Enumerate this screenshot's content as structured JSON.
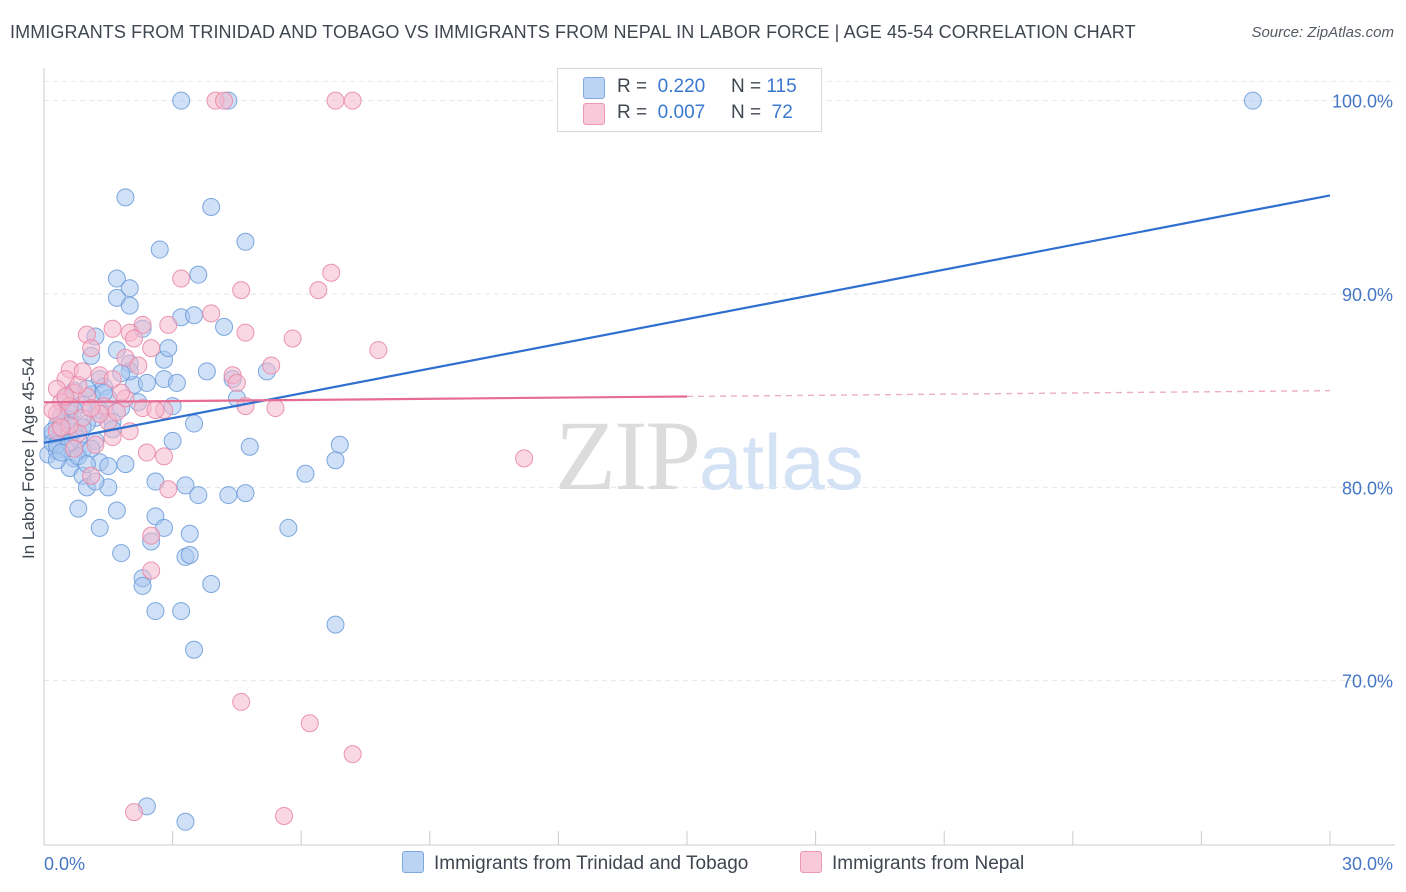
{
  "header": {
    "title": "IMMIGRANTS FROM TRINIDAD AND TOBAGO VS IMMIGRANTS FROM NEPAL IN LABOR FORCE | AGE 45-54 CORRELATION CHART",
    "source": "Source: ZipAtlas.com"
  },
  "watermark": {
    "zip": "ZIP",
    "atlas": "atlas"
  },
  "legend": {
    "rows": [
      {
        "r_label": "R =",
        "r_value": "0.220",
        "n_label": "N =",
        "n_value": "115"
      },
      {
        "r_label": "R =",
        "r_value": "0.007",
        "n_label": "N =",
        "n_value": "72"
      }
    ]
  },
  "bottom_legend": {
    "series1": "Immigrants from Trinidad and Tobago",
    "series2": "Immigrants from Nepal"
  },
  "colors": {
    "blue_fill": "#a9c6ef",
    "blue_stroke": "#6f9fdc",
    "blue_line": "#2f6fd0",
    "pink_fill": "#f5b8cc",
    "pink_stroke": "#e889a8",
    "pink_line": "#e66c94",
    "tick_text": "#4677c4"
  },
  "chart_data": {
    "type": "scatter",
    "title": "IMMIGRANTS FROM TRINIDAD AND TOBAGO VS IMMIGRANTS FROM NEPAL IN LABOR FORCE | AGE 45-54 CORRELATION CHART",
    "xlabel": "",
    "ylabel": "In Labor Force | Age 45-54",
    "xlim": [
      0,
      30
    ],
    "ylim": [
      61.5,
      102
    ],
    "x_ticks": [
      "0.0%",
      "30.0%"
    ],
    "y_ticks": [
      {
        "value": 100,
        "label": "100.0%"
      },
      {
        "value": 90,
        "label": "90.0%"
      },
      {
        "value": 80,
        "label": "80.0%"
      },
      {
        "value": 70,
        "label": "70.0%"
      }
    ],
    "grid": true,
    "legend_position": "top-center",
    "series": [
      {
        "name": "Immigrants from Trinidad and Tobago",
        "color": "#a9c6ef",
        "trend": {
          "x": [
            0,
            30
          ],
          "y": [
            82.3,
            95.1
          ]
        },
        "points": [
          [
            3.2,
            100
          ],
          [
            4.3,
            100
          ],
          [
            28.2,
            100
          ],
          [
            1.9,
            95
          ],
          [
            3.9,
            94.5
          ],
          [
            4.7,
            92.7
          ],
          [
            2.7,
            92.3
          ],
          [
            1.7,
            90.8
          ],
          [
            3.6,
            91
          ],
          [
            2.0,
            90.3
          ],
          [
            1.7,
            89.8
          ],
          [
            2.0,
            89.4
          ],
          [
            3.2,
            88.8
          ],
          [
            3.5,
            88.9
          ],
          [
            4.2,
            88.3
          ],
          [
            2.3,
            88.2
          ],
          [
            1.2,
            87.8
          ],
          [
            1.7,
            87.1
          ],
          [
            1.1,
            86.8
          ],
          [
            2.0,
            86.4
          ],
          [
            2.8,
            86.6
          ],
          [
            3.8,
            86.0
          ],
          [
            5.2,
            86.0
          ],
          [
            2.8,
            85.6
          ],
          [
            3.1,
            85.4
          ],
          [
            4.4,
            85.6
          ],
          [
            2.1,
            85.3
          ],
          [
            1.3,
            85.6
          ],
          [
            1.4,
            85.2
          ],
          [
            0.7,
            85.0
          ],
          [
            1.1,
            84.8
          ],
          [
            1.5,
            84.6
          ],
          [
            3.0,
            84.2
          ],
          [
            4.5,
            84.6
          ],
          [
            0.9,
            84.3
          ],
          [
            1.3,
            84.0
          ],
          [
            1.8,
            84.1
          ],
          [
            0.6,
            83.9
          ],
          [
            1.2,
            83.6
          ],
          [
            1.6,
            83.4
          ],
          [
            3.5,
            83.3
          ],
          [
            1.0,
            83.3
          ],
          [
            0.3,
            83.2
          ],
          [
            0.5,
            83.0
          ],
          [
            0.7,
            82.9
          ],
          [
            0.2,
            82.7
          ],
          [
            0.4,
            82.6
          ],
          [
            0.8,
            82.5
          ],
          [
            1.2,
            82.4
          ],
          [
            3.0,
            82.4
          ],
          [
            0.5,
            82.0
          ],
          [
            0.9,
            81.9
          ],
          [
            0.1,
            81.7
          ],
          [
            0.3,
            81.9
          ],
          [
            0.7,
            81.5
          ],
          [
            1.3,
            81.3
          ],
          [
            1.5,
            81.1
          ],
          [
            1.9,
            81.2
          ],
          [
            4.8,
            82.1
          ],
          [
            6.9,
            82.2
          ],
          [
            6.8,
            81.4
          ],
          [
            0.6,
            81.0
          ],
          [
            0.9,
            80.6
          ],
          [
            1.0,
            80.0
          ],
          [
            1.5,
            80.0
          ],
          [
            2.6,
            80.3
          ],
          [
            3.3,
            80.1
          ],
          [
            3.6,
            79.6
          ],
          [
            4.3,
            79.6
          ],
          [
            4.7,
            79.7
          ],
          [
            6.1,
            80.7
          ],
          [
            0.8,
            78.9
          ],
          [
            1.7,
            78.8
          ],
          [
            2.6,
            78.5
          ],
          [
            2.8,
            77.9
          ],
          [
            1.3,
            77.9
          ],
          [
            2.5,
            77.2
          ],
          [
            3.4,
            77.6
          ],
          [
            5.7,
            77.9
          ],
          [
            1.8,
            76.6
          ],
          [
            3.3,
            76.4
          ],
          [
            3.4,
            76.5
          ],
          [
            2.3,
            75.3
          ],
          [
            2.3,
            74.9
          ],
          [
            3.9,
            75.0
          ],
          [
            2.6,
            73.6
          ],
          [
            3.2,
            73.6
          ],
          [
            6.8,
            72.9
          ],
          [
            3.5,
            71.6
          ],
          [
            2.4,
            63.5
          ],
          [
            3.3,
            62.7
          ],
          [
            0.2,
            82.3
          ],
          [
            0.4,
            82.8
          ],
          [
            0.6,
            83.5
          ],
          [
            0.3,
            81.4
          ],
          [
            0.8,
            81.6
          ],
          [
            1.1,
            82.0
          ],
          [
            1.4,
            84.9
          ],
          [
            2.2,
            84.4
          ],
          [
            1.6,
            83.0
          ],
          [
            0.5,
            84.6
          ],
          [
            0.9,
            83.1
          ],
          [
            2.0,
            86.0
          ],
          [
            1.0,
            85.1
          ],
          [
            0.2,
            82.9
          ],
          [
            0.4,
            83.7
          ],
          [
            0.7,
            84.0
          ],
          [
            1.8,
            85.9
          ],
          [
            2.4,
            85.4
          ],
          [
            2.9,
            87.2
          ],
          [
            0.3,
            82.2
          ],
          [
            0.6,
            82.3
          ],
          [
            1.0,
            81.2
          ],
          [
            1.2,
            80.3
          ],
          [
            0.4,
            81.8
          ]
        ]
      },
      {
        "name": "Immigrants from Nepal",
        "color": "#f5b8cc",
        "trend": {
          "x": [
            0,
            15
          ],
          "y": [
            84.4,
            84.7
          ]
        },
        "trend_dashed": {
          "x": [
            15,
            30
          ],
          "y": [
            84.7,
            85.0
          ]
        },
        "points": [
          [
            4.0,
            100
          ],
          [
            4.2,
            100
          ],
          [
            6.8,
            100
          ],
          [
            7.2,
            100
          ],
          [
            6.7,
            91.1
          ],
          [
            3.2,
            90.8
          ],
          [
            4.6,
            90.2
          ],
          [
            6.4,
            90.2
          ],
          [
            3.9,
            89.0
          ],
          [
            2.3,
            88.4
          ],
          [
            1.6,
            88.2
          ],
          [
            2.0,
            88.0
          ],
          [
            4.7,
            88.0
          ],
          [
            1.0,
            87.9
          ],
          [
            2.1,
            87.7
          ],
          [
            2.5,
            87.2
          ],
          [
            5.8,
            87.7
          ],
          [
            7.8,
            87.1
          ],
          [
            1.1,
            87.2
          ],
          [
            1.9,
            86.7
          ],
          [
            2.2,
            86.3
          ],
          [
            5.3,
            86.3
          ],
          [
            0.6,
            86.1
          ],
          [
            0.5,
            85.6
          ],
          [
            1.3,
            85.8
          ],
          [
            1.6,
            85.6
          ],
          [
            4.4,
            85.8
          ],
          [
            4.5,
            85.4
          ],
          [
            0.3,
            85.1
          ],
          [
            0.7,
            84.9
          ],
          [
            1.0,
            84.7
          ],
          [
            1.9,
            84.6
          ],
          [
            0.4,
            84.4
          ],
          [
            0.6,
            84.2
          ],
          [
            1.4,
            84.2
          ],
          [
            2.3,
            84.1
          ],
          [
            2.8,
            84.0
          ],
          [
            4.7,
            84.2
          ],
          [
            5.4,
            84.1
          ],
          [
            0.3,
            83.8
          ],
          [
            0.9,
            83.6
          ],
          [
            1.5,
            83.4
          ],
          [
            0.8,
            82.8
          ],
          [
            1.6,
            82.6
          ],
          [
            1.2,
            82.2
          ],
          [
            2.4,
            81.8
          ],
          [
            2.8,
            81.6
          ],
          [
            11.2,
            81.5
          ],
          [
            1.1,
            80.6
          ],
          [
            2.9,
            79.9
          ],
          [
            2.5,
            77.5
          ],
          [
            2.5,
            75.7
          ],
          [
            4.6,
            68.9
          ],
          [
            6.2,
            67.8
          ],
          [
            7.2,
            66.2
          ],
          [
            2.1,
            63.2
          ],
          [
            5.6,
            63.0
          ],
          [
            0.2,
            84.0
          ],
          [
            0.5,
            84.7
          ],
          [
            0.8,
            85.3
          ],
          [
            1.8,
            84.9
          ],
          [
            2.6,
            84.0
          ],
          [
            0.3,
            82.9
          ],
          [
            0.6,
            83.2
          ],
          [
            1.3,
            83.8
          ],
          [
            2.0,
            82.9
          ],
          [
            0.9,
            86.0
          ],
          [
            1.1,
            84.1
          ],
          [
            0.4,
            83.1
          ],
          [
            0.7,
            82.0
          ],
          [
            1.7,
            83.9
          ],
          [
            2.9,
            88.4
          ]
        ]
      }
    ]
  }
}
